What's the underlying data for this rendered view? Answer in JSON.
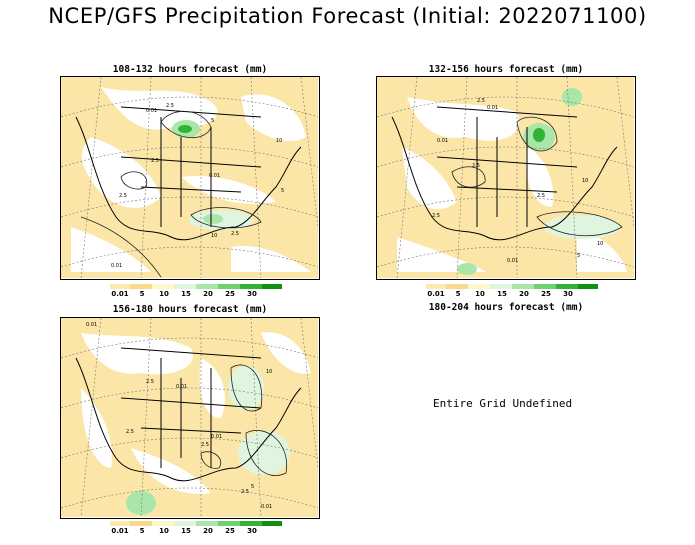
{
  "title": "NCEP/GFS Precipitation Forecast (Initial: 2022071100)",
  "panels": [
    {
      "title": "108-132 hours forecast (mm)",
      "contour_labels": [
        "0.01",
        "2.5",
        "5",
        "10",
        "2.5",
        "0.01",
        "2.5",
        "10",
        "2.5",
        "5",
        "0.01"
      ]
    },
    {
      "title": "132-156 hours forecast (mm)",
      "contour_labels": [
        "0.01",
        "2.5",
        "0.01",
        "2.5",
        "10",
        "2.5",
        "0.01",
        "10",
        "5",
        "2.5"
      ]
    },
    {
      "title": "156-180 hours forecast (mm)",
      "contour_labels": [
        "0.01",
        "2.5",
        "0.01",
        "2.5",
        "10",
        "0.01",
        "2.5",
        "5",
        "0.01",
        "2.5"
      ]
    },
    {
      "title": "180-204 hours forecast (mm)",
      "note": "Entire Grid Undefined"
    }
  ],
  "legend": {
    "ticks": [
      "0.01",
      "5",
      "10",
      "15",
      "20",
      "25",
      "30"
    ],
    "colors": [
      "#fbe9b0",
      "#f7d98a",
      "#fff6cc",
      "#dff5df",
      "#a9e6a9",
      "#6fd06f",
      "#33b233",
      "#129012"
    ]
  }
}
